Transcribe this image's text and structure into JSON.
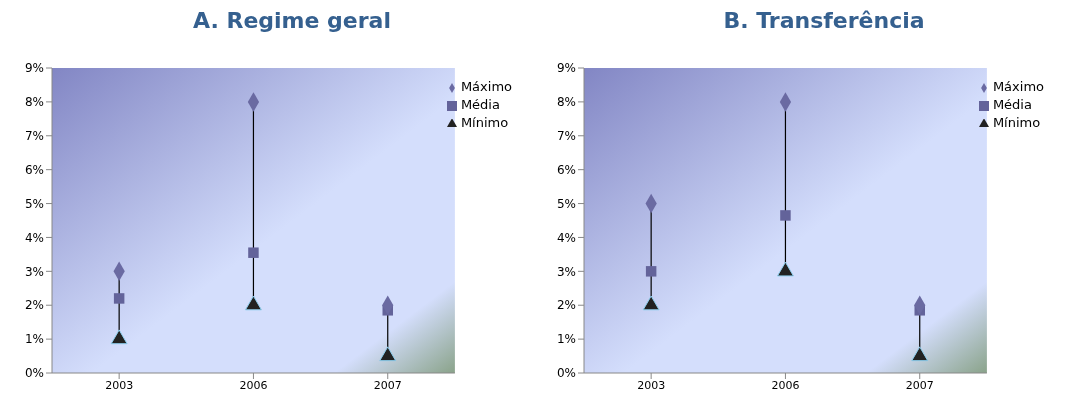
{
  "chart_data": [
    {
      "type": "scatter",
      "title": "A. Regime geral",
      "categories": [
        "2003",
        "2006",
        "2007"
      ],
      "ylim": [
        0,
        9
      ],
      "yticks": [
        {
          "value": 0,
          "label": "0%"
        },
        {
          "value": 1,
          "label": "1%"
        },
        {
          "value": 2,
          "label": "2%"
        },
        {
          "value": 3,
          "label": "3%"
        },
        {
          "value": 4,
          "label": "4%"
        },
        {
          "value": 5,
          "label": "5%"
        },
        {
          "value": 6,
          "label": "6%"
        },
        {
          "value": 7,
          "label": "7%"
        },
        {
          "value": 8,
          "label": "8%"
        },
        {
          "value": 9,
          "label": "9%"
        }
      ],
      "grid": false,
      "legend": "top right",
      "series": [
        {
          "name": "Máximo",
          "color": "#6a6aa2",
          "marker": "diamond",
          "values": [
            3,
            8,
            2
          ]
        },
        {
          "name": "Média",
          "color": "#63639a",
          "marker": "square",
          "values": [
            2.2,
            3.55,
            1.85
          ]
        },
        {
          "name": "Mínimo",
          "color": "#222222",
          "marker": "triangle",
          "values": [
            1,
            2,
            0.5
          ]
        }
      ]
    },
    {
      "type": "scatter",
      "title": "B. Transferência",
      "categories": [
        "2003",
        "2006",
        "2007"
      ],
      "ylim": [
        0,
        9
      ],
      "yticks": [
        {
          "value": 0,
          "label": "0%"
        },
        {
          "value": 1,
          "label": "1%"
        },
        {
          "value": 2,
          "label": "2%"
        },
        {
          "value": 3,
          "label": "3%"
        },
        {
          "value": 4,
          "label": "4%"
        },
        {
          "value": 5,
          "label": "5%"
        },
        {
          "value": 6,
          "label": "6%"
        },
        {
          "value": 7,
          "label": "7%"
        },
        {
          "value": 8,
          "label": "8%"
        },
        {
          "value": 9,
          "label": "9%"
        }
      ],
      "grid": false,
      "legend": "top right",
      "series": [
        {
          "name": "Máximo",
          "color": "#6a6aa2",
          "marker": "diamond",
          "values": [
            5,
            8,
            2
          ]
        },
        {
          "name": "Média",
          "color": "#63639a",
          "marker": "square",
          "values": [
            3.0,
            4.65,
            1.85
          ]
        },
        {
          "name": "Mínimo",
          "color": "#222222",
          "marker": "triangle",
          "values": [
            2,
            3,
            0.5
          ]
        }
      ]
    }
  ]
}
